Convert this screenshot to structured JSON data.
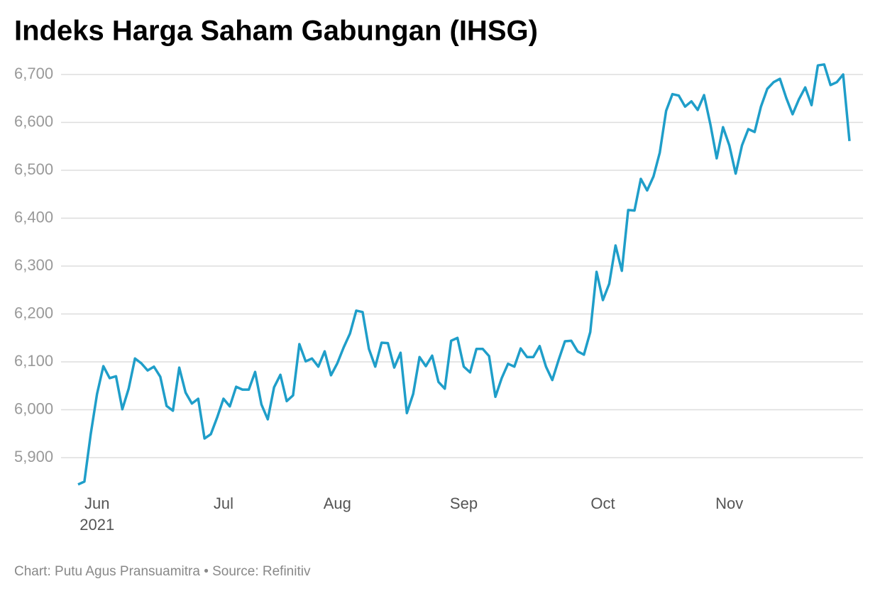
{
  "chart_data": {
    "type": "line",
    "title": "Indeks Harga Saham Gabungan (IHSG)",
    "footer": "Chart: Putu Agus Pransuamitra • Source: Refinitiv",
    "year_label": "2021",
    "categories": [
      null,
      null,
      null,
      "Jun",
      null,
      null,
      null,
      null,
      null,
      null,
      null,
      null,
      null,
      null,
      null,
      null,
      null,
      null,
      null,
      null,
      null,
      null,
      null,
      "Jul",
      null,
      null,
      null,
      null,
      null,
      null,
      null,
      null,
      null,
      null,
      null,
      null,
      null,
      null,
      null,
      null,
      null,
      "Aug",
      null,
      null,
      null,
      null,
      null,
      null,
      null,
      null,
      null,
      null,
      null,
      null,
      null,
      null,
      null,
      null,
      null,
      null,
      null,
      "Sep",
      null,
      null,
      null,
      null,
      null,
      null,
      null,
      null,
      null,
      null,
      null,
      null,
      null,
      null,
      null,
      null,
      null,
      null,
      null,
      null,
      null,
      "Oct",
      null,
      null,
      null,
      null,
      null,
      null,
      null,
      null,
      null,
      null,
      null,
      null,
      null,
      null,
      null,
      null,
      null,
      null,
      null,
      "Nov",
      null,
      null,
      null,
      null,
      null,
      null,
      null,
      null,
      null,
      null,
      null,
      null,
      null,
      null,
      null,
      null,
      null,
      null,
      null
    ],
    "values": [
      5844,
      5850,
      5949,
      6033,
      6091,
      6066,
      6070,
      6001,
      6044,
      6107,
      6097,
      6082,
      6090,
      6069,
      6008,
      5998,
      6088,
      6036,
      6013,
      6023,
      5940,
      5949,
      5984,
      6023,
      6007,
      6048,
      6042,
      6042,
      6079,
      6011,
      5980,
      6047,
      6073,
      6018,
      6030,
      6137,
      6101,
      6107,
      6090,
      6122,
      6072,
      6097,
      6130,
      6159,
      6207,
      6204,
      6127,
      6090,
      6140,
      6139,
      6088,
      6119,
      5993,
      6033,
      6110,
      6091,
      6113,
      6058,
      6044,
      6144,
      6150,
      6090,
      6078,
      6127,
      6127,
      6112,
      6027,
      6066,
      6096,
      6090,
      6128,
      6110,
      6110,
      6133,
      6090,
      6062,
      6104,
      6143,
      6144,
      6122,
      6115,
      6162,
      6288,
      6229,
      6263,
      6343,
      6290,
      6417,
      6416,
      6482,
      6458,
      6487,
      6537,
      6624,
      6659,
      6656,
      6633,
      6644,
      6626,
      6657,
      6596,
      6525,
      6590,
      6552,
      6493,
      6552,
      6586,
      6580,
      6633,
      6670,
      6684,
      6691,
      6651,
      6617,
      6648,
      6673,
      6636,
      6719,
      6721,
      6678,
      6684,
      6700,
      6561
    ],
    "color": "#1f9ec9",
    "ylim": [
      5830,
      6730
    ],
    "yticks": [
      {
        "value": 5900,
        "label": "5,900"
      },
      {
        "value": 6000,
        "label": "6,000"
      },
      {
        "value": 6100,
        "label": "6,100"
      },
      {
        "value": 6200,
        "label": "6,200"
      },
      {
        "value": 6300,
        "label": "6,300"
      },
      {
        "value": 6400,
        "label": "6,400"
      },
      {
        "value": 6500,
        "label": "6,500"
      },
      {
        "value": 6600,
        "label": "6,600"
      },
      {
        "value": 6700,
        "label": "6,700"
      }
    ],
    "grid": true
  }
}
